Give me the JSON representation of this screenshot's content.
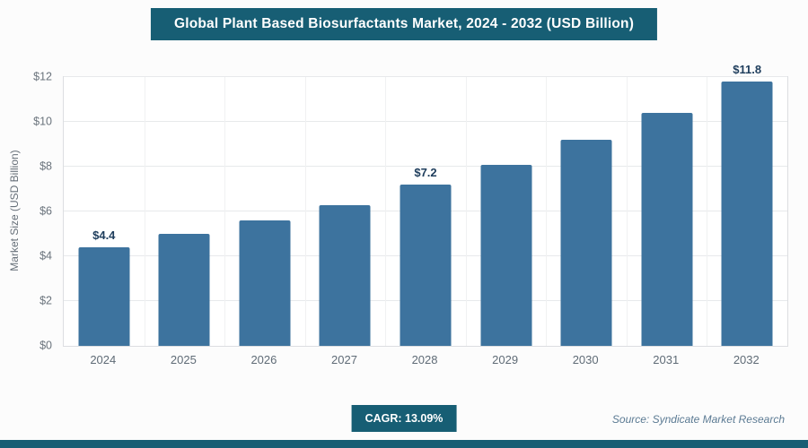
{
  "header": {
    "title": "Global Plant Based Biosurfactants Market, 2024 - 2032 (USD Billion)"
  },
  "chart_data": {
    "type": "bar",
    "title": "Global Plant Based Biosurfactants Market, 2024 - 2032 (USD Billion)",
    "categories": [
      "2024",
      "2025",
      "2026",
      "2027",
      "2028",
      "2029",
      "2030",
      "2031",
      "2032"
    ],
    "values": [
      4.4,
      5.0,
      5.6,
      6.3,
      7.2,
      8.1,
      9.2,
      10.4,
      11.8
    ],
    "bar_labels": [
      "$4.4",
      "",
      "",
      "",
      "$7.2",
      "",
      "",
      "",
      "$11.8"
    ],
    "xlabel": "",
    "ylabel": "Market Size (USD Billion)",
    "ylim": [
      0,
      12
    ],
    "yticks": [
      0,
      2,
      4,
      6,
      8,
      10,
      12
    ],
    "ytick_labels": [
      "$0",
      "$2",
      "$4",
      "$6",
      "$8",
      "$10",
      "$12"
    ],
    "grid": true,
    "legend": "none"
  },
  "footer": {
    "cagr_label": "CAGR: 13.09%",
    "source": "Source: Syndicate Market Research"
  },
  "colors": {
    "accent": "#175e74",
    "bar": "#3d739e",
    "bar_label": "#1e3d5c"
  }
}
